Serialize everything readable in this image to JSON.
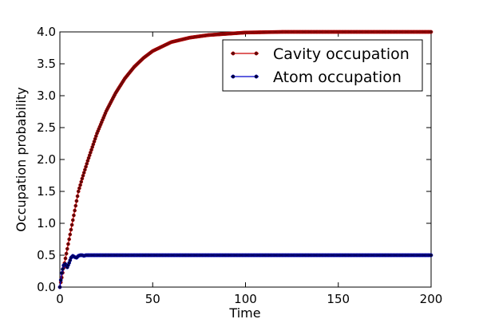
{
  "chart_data": {
    "type": "line",
    "title": "",
    "xlabel": "Time",
    "ylabel": "Occupation probability",
    "xlim": [
      0,
      200
    ],
    "ylim": [
      0.0,
      4.0
    ],
    "xticks": [
      0,
      50,
      100,
      150,
      200
    ],
    "yticks": [
      0.0,
      0.5,
      1.0,
      1.5,
      2.0,
      2.5,
      3.0,
      3.5,
      4.0
    ],
    "xtick_labels": [
      "0",
      "50",
      "100",
      "150",
      "200"
    ],
    "ytick_labels": [
      "0.0",
      "0.5",
      "1.0",
      "1.5",
      "2.0",
      "2.5",
      "3.0",
      "3.5",
      "4.0"
    ],
    "grid": false,
    "legend": {
      "position": "top-right"
    },
    "series": [
      {
        "name": "Cavity occupation",
        "line_color": "#cc0000",
        "marker_color": "#5a0a0a",
        "x": [
          0,
          2,
          4,
          6,
          8,
          10,
          12,
          15,
          20,
          25,
          30,
          35,
          40,
          45,
          50,
          60,
          70,
          80,
          90,
          100,
          120,
          140,
          160,
          180,
          200
        ],
        "y": [
          0.0,
          0.3,
          0.6,
          0.9,
          1.2,
          1.5,
          1.7,
          1.98,
          2.41,
          2.76,
          3.04,
          3.27,
          3.45,
          3.59,
          3.7,
          3.84,
          3.91,
          3.95,
          3.97,
          3.99,
          4.0,
          4.0,
          4.0,
          4.0,
          4.0
        ]
      },
      {
        "name": "Atom occupation",
        "line_color": "#0000cc",
        "marker_color": "#000033",
        "x": [
          0,
          1,
          2,
          3,
          4,
          5,
          6,
          7,
          8,
          9,
          10,
          11,
          12,
          13,
          14,
          15,
          20,
          30,
          50,
          100,
          150,
          200
        ],
        "y": [
          0.0,
          0.22,
          0.34,
          0.36,
          0.31,
          0.38,
          0.46,
          0.49,
          0.47,
          0.46,
          0.49,
          0.5,
          0.5,
          0.49,
          0.5,
          0.5,
          0.5,
          0.5,
          0.5,
          0.5,
          0.5,
          0.5
        ]
      }
    ]
  }
}
